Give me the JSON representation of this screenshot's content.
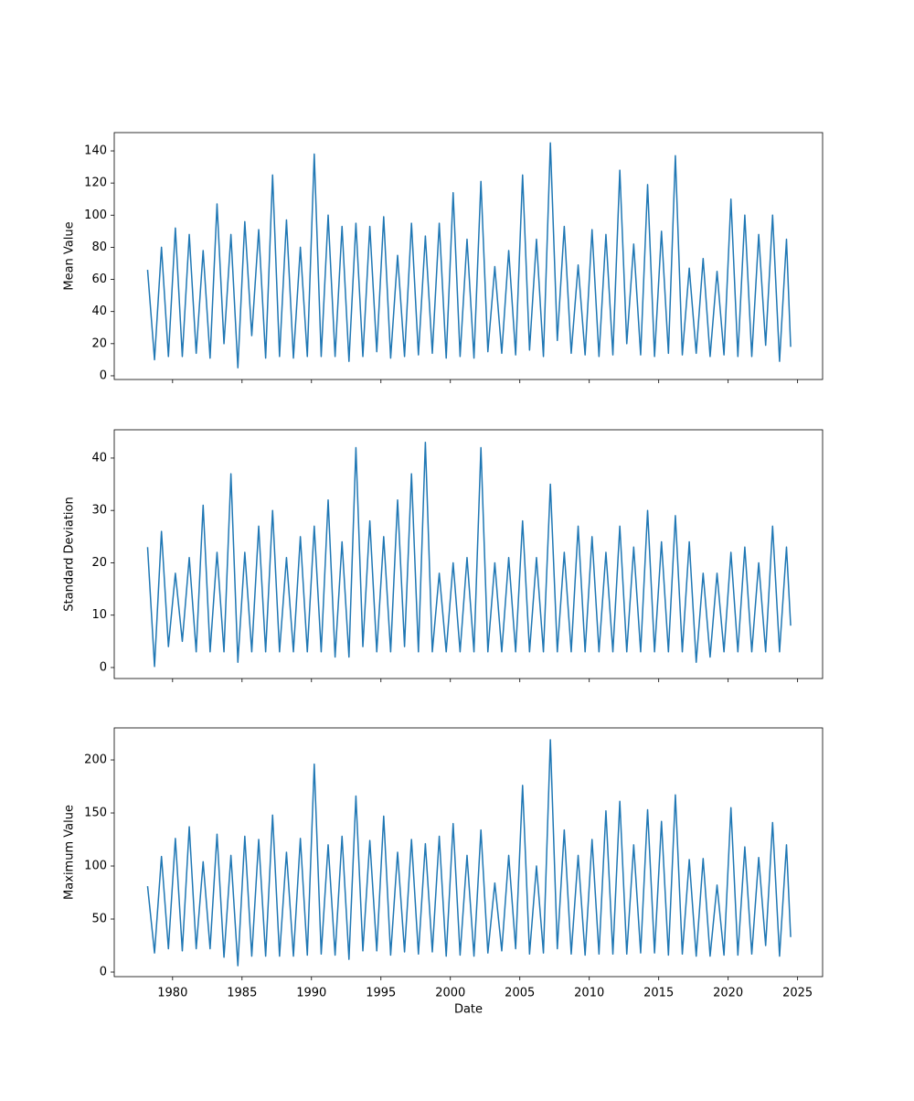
{
  "chart_data": [
    {
      "type": "line",
      "ylabel": "Mean Value",
      "color": "#1f77b4",
      "grid": false,
      "xlim": [
        1975.8,
        2026.8
      ],
      "xticks": [
        1980,
        1985,
        1990,
        1995,
        2000,
        2005,
        2010,
        2015,
        2020,
        2025
      ],
      "ylim": [
        -2.3,
        151.4
      ],
      "yticks": [
        0,
        20,
        40,
        60,
        80,
        100,
        120,
        140
      ],
      "x": [
        1978.2,
        1978.7,
        1979.2,
        1979.7,
        1980.2,
        1980.7,
        1981.2,
        1981.7,
        1982.2,
        1982.7,
        1983.2,
        1983.7,
        1984.2,
        1984.7,
        1985.2,
        1985.7,
        1986.2,
        1986.7,
        1987.2,
        1987.7,
        1988.2,
        1988.7,
        1989.2,
        1989.7,
        1990.2,
        1990.7,
        1991.2,
        1991.7,
        1992.2,
        1992.7,
        1993.2,
        1993.7,
        1994.2,
        1994.7,
        1995.2,
        1995.7,
        1996.2,
        1996.7,
        1997.2,
        1997.7,
        1998.2,
        1998.7,
        1999.2,
        1999.7,
        2000.2,
        2000.7,
        2001.2,
        2001.7,
        2002.2,
        2002.7,
        2003.2,
        2003.7,
        2004.2,
        2004.7,
        2005.2,
        2005.7,
        2006.2,
        2006.7,
        2007.2,
        2007.7,
        2008.2,
        2008.7,
        2009.2,
        2009.7,
        2010.2,
        2010.7,
        2011.2,
        2011.7,
        2012.2,
        2012.7,
        2013.2,
        2013.7,
        2014.2,
        2014.7,
        2015.2,
        2015.7,
        2016.2,
        2016.7,
        2017.2,
        2017.7,
        2018.2,
        2018.7,
        2019.2,
        2019.7,
        2020.2,
        2020.7,
        2021.2,
        2021.7,
        2022.2,
        2022.7,
        2023.2,
        2023.7,
        2024.2,
        2024.5
      ],
      "values": [
        66,
        10,
        80,
        12,
        92,
        12,
        88,
        14,
        78,
        11,
        107,
        20,
        88,
        5,
        96,
        25,
        91,
        11,
        125,
        12,
        97,
        11,
        80,
        12,
        138,
        12,
        100,
        12,
        93,
        9,
        95,
        12,
        93,
        15,
        99,
        11,
        75,
        12,
        95,
        13,
        87,
        14,
        95,
        11,
        114,
        12,
        85,
        11,
        121,
        15,
        68,
        14,
        78,
        13,
        125,
        16,
        85,
        12,
        145,
        22,
        93,
        14,
        69,
        13,
        91,
        12,
        88,
        13,
        128,
        20,
        82,
        13,
        119,
        12,
        90,
        14,
        137,
        13,
        67,
        14,
        73,
        12,
        65,
        13,
        110,
        12,
        100,
        12,
        88,
        19,
        100,
        9,
        85,
        18
      ]
    },
    {
      "type": "line",
      "ylabel": "Standard Deviation",
      "color": "#1f77b4",
      "grid": false,
      "xlim": [
        1975.8,
        2026.8
      ],
      "xticks": [
        1980,
        1985,
        1990,
        1995,
        2000,
        2005,
        2010,
        2015,
        2020,
        2025
      ],
      "ylim": [
        -2.1,
        45.4
      ],
      "yticks": [
        0,
        10,
        20,
        30,
        40
      ],
      "x": [
        1978.2,
        1978.7,
        1979.2,
        1979.7,
        1980.2,
        1980.7,
        1981.2,
        1981.7,
        1982.2,
        1982.7,
        1983.2,
        1983.7,
        1984.2,
        1984.7,
        1985.2,
        1985.7,
        1986.2,
        1986.7,
        1987.2,
        1987.7,
        1988.2,
        1988.7,
        1989.2,
        1989.7,
        1990.2,
        1990.7,
        1991.2,
        1991.7,
        1992.2,
        1992.7,
        1993.2,
        1993.7,
        1994.2,
        1994.7,
        1995.2,
        1995.7,
        1996.2,
        1996.7,
        1997.2,
        1997.7,
        1998.2,
        1998.7,
        1999.2,
        1999.7,
        2000.2,
        2000.7,
        2001.2,
        2001.7,
        2002.2,
        2002.7,
        2003.2,
        2003.7,
        2004.2,
        2004.7,
        2005.2,
        2005.7,
        2006.2,
        2006.7,
        2007.2,
        2007.7,
        2008.2,
        2008.7,
        2009.2,
        2009.7,
        2010.2,
        2010.7,
        2011.2,
        2011.7,
        2012.2,
        2012.7,
        2013.2,
        2013.7,
        2014.2,
        2014.7,
        2015.2,
        2015.7,
        2016.2,
        2016.7,
        2017.2,
        2017.7,
        2018.2,
        2018.7,
        2019.2,
        2019.7,
        2020.2,
        2020.7,
        2021.2,
        2021.7,
        2022.2,
        2022.7,
        2023.2,
        2023.7,
        2024.2,
        2024.5
      ],
      "values": [
        23,
        0.2,
        26,
        4,
        18,
        5,
        21,
        3,
        31,
        3,
        22,
        3,
        37,
        1,
        22,
        3,
        27,
        3,
        30,
        3,
        21,
        3,
        25,
        3,
        27,
        3,
        32,
        2,
        24,
        2,
        42,
        4,
        28,
        3,
        25,
        3,
        32,
        4,
        37,
        3,
        43,
        3,
        18,
        3,
        20,
        3,
        21,
        3,
        42,
        3,
        20,
        3,
        21,
        3,
        28,
        3,
        21,
        3,
        35,
        3,
        22,
        3,
        27,
        3,
        25,
        3,
        22,
        3,
        27,
        3,
        23,
        3,
        30,
        3,
        24,
        3,
        29,
        3,
        24,
        1,
        18,
        2,
        18,
        3,
        22,
        3,
        23,
        3,
        20,
        3,
        27,
        3,
        23,
        8
      ]
    },
    {
      "type": "line",
      "ylabel": "Maximum Value",
      "xlabel": "Date",
      "color": "#1f77b4",
      "grid": false,
      "xlim": [
        1975.8,
        2026.8
      ],
      "xticks": [
        1980,
        1985,
        1990,
        1995,
        2000,
        2005,
        2010,
        2015,
        2020,
        2025
      ],
      "ylim": [
        -4.3,
        230.2
      ],
      "yticks": [
        0,
        50,
        100,
        150,
        200
      ],
      "x": [
        1978.2,
        1978.7,
        1979.2,
        1979.7,
        1980.2,
        1980.7,
        1981.2,
        1981.7,
        1982.2,
        1982.7,
        1983.2,
        1983.7,
        1984.2,
        1984.7,
        1985.2,
        1985.7,
        1986.2,
        1986.7,
        1987.2,
        1987.7,
        1988.2,
        1988.7,
        1989.2,
        1989.7,
        1990.2,
        1990.7,
        1991.2,
        1991.7,
        1992.2,
        1992.7,
        1993.2,
        1993.7,
        1994.2,
        1994.7,
        1995.2,
        1995.7,
        1996.2,
        1996.7,
        1997.2,
        1997.7,
        1998.2,
        1998.7,
        1999.2,
        1999.7,
        2000.2,
        2000.7,
        2001.2,
        2001.7,
        2002.2,
        2002.7,
        2003.2,
        2003.7,
        2004.2,
        2004.7,
        2005.2,
        2005.7,
        2006.2,
        2006.7,
        2007.2,
        2007.7,
        2008.2,
        2008.7,
        2009.2,
        2009.7,
        2010.2,
        2010.7,
        2011.2,
        2011.7,
        2012.2,
        2012.7,
        2013.2,
        2013.7,
        2014.2,
        2014.7,
        2015.2,
        2015.7,
        2016.2,
        2016.7,
        2017.2,
        2017.7,
        2018.2,
        2018.7,
        2019.2,
        2019.7,
        2020.2,
        2020.7,
        2021.2,
        2021.7,
        2022.2,
        2022.7,
        2023.2,
        2023.7,
        2024.2,
        2024.5
      ],
      "values": [
        81,
        18,
        109,
        22,
        126,
        20,
        137,
        22,
        104,
        22,
        130,
        14,
        110,
        6,
        128,
        15,
        125,
        15,
        148,
        15,
        113,
        15,
        126,
        16,
        196,
        17,
        120,
        16,
        128,
        12,
        166,
        20,
        124,
        20,
        147,
        16,
        113,
        19,
        125,
        17,
        121,
        19,
        128,
        15,
        140,
        16,
        110,
        15,
        134,
        18,
        84,
        20,
        110,
        22,
        176,
        17,
        100,
        18,
        219,
        22,
        134,
        17,
        110,
        16,
        125,
        17,
        152,
        17,
        161,
        17,
        120,
        18,
        153,
        18,
        142,
        16,
        167,
        17,
        106,
        15,
        107,
        15,
        82,
        16,
        155,
        16,
        118,
        17,
        108,
        25,
        141,
        15,
        120,
        33
      ]
    }
  ]
}
